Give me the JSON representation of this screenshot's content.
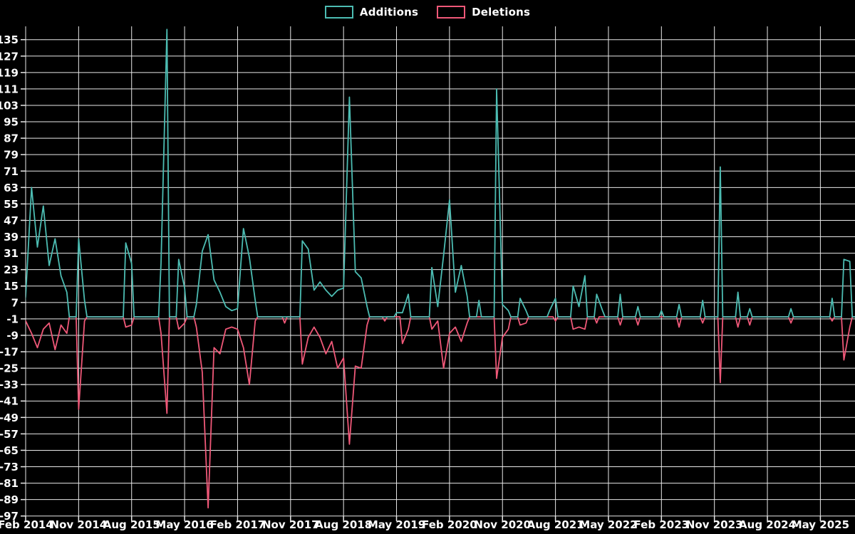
{
  "legend": {
    "items": [
      {
        "label": "Additions",
        "color": "#4cbcb2"
      },
      {
        "label": "Deletions",
        "color": "#ef5878"
      }
    ]
  },
  "colors": {
    "background": "#000000",
    "grid": "#e8e8e8",
    "text": "#ffffff",
    "additions": "#4cbcb2",
    "deletions": "#ef5878"
  },
  "chart_data": {
    "type": "line",
    "title": "",
    "xlabel": "",
    "ylabel": "",
    "legend_position": "top-center",
    "grid": true,
    "x_unit": "months since Feb 2014",
    "months_total": 141,
    "x_tick_interval_months": 9,
    "x_tick_labels": [
      "Feb 2014",
      "Nov 2014",
      "Aug 2015",
      "May 2016",
      "Feb 2017",
      "Nov 2017",
      "Aug 2018",
      "May 2019",
      "Feb 2020",
      "Nov 2020",
      "Aug 2021",
      "May 2022",
      "Feb 2023",
      "Nov 2023",
      "Aug 2024",
      "May 2025"
    ],
    "y_ticks": [
      135,
      127,
      119,
      111,
      103,
      95,
      87,
      79,
      71,
      63,
      55,
      47,
      39,
      31,
      23,
      15,
      7,
      -1,
      -9,
      -17,
      -25,
      -33,
      -41,
      -49,
      -57,
      -65,
      -73,
      -81,
      -89,
      -97
    ],
    "ylim": [
      -97,
      141
    ],
    "baseline_value": 0,
    "series": [
      {
        "name": "Additions",
        "color": "#4cbcb2",
        "points": [
          [
            0,
            10
          ],
          [
            1,
            63
          ],
          [
            2,
            34
          ],
          [
            3,
            54
          ],
          [
            4,
            25
          ],
          [
            5,
            38
          ],
          [
            6,
            20
          ],
          [
            7,
            12
          ],
          [
            9,
            38
          ],
          [
            10,
            8
          ],
          [
            17,
            36
          ],
          [
            18,
            26
          ],
          [
            23,
            26
          ],
          [
            24,
            140
          ],
          [
            26,
            28
          ],
          [
            27,
            14
          ],
          [
            29,
            6
          ],
          [
            30,
            32
          ],
          [
            31,
            40
          ],
          [
            32,
            18
          ],
          [
            33,
            12
          ],
          [
            34,
            5
          ],
          [
            35,
            3
          ],
          [
            36,
            4
          ],
          [
            37,
            43
          ],
          [
            38,
            29
          ],
          [
            39,
            8
          ],
          [
            47,
            37
          ],
          [
            48,
            33
          ],
          [
            49,
            13
          ],
          [
            50,
            17
          ],
          [
            51,
            13
          ],
          [
            52,
            10
          ],
          [
            53,
            13
          ],
          [
            54,
            14
          ],
          [
            55,
            107
          ],
          [
            56,
            22
          ],
          [
            57,
            19
          ],
          [
            58,
            5
          ],
          [
            63,
            2
          ],
          [
            64,
            2
          ],
          [
            65,
            11
          ],
          [
            69,
            24
          ],
          [
            70,
            5
          ],
          [
            71,
            30
          ],
          [
            72,
            57
          ],
          [
            73,
            12
          ],
          [
            74,
            25
          ],
          [
            75,
            10
          ],
          [
            77,
            8
          ],
          [
            80,
            111
          ],
          [
            81,
            6
          ],
          [
            82,
            3
          ],
          [
            84,
            9
          ],
          [
            85,
            3
          ],
          [
            89,
            3
          ],
          [
            90,
            9
          ],
          [
            93,
            15
          ],
          [
            94,
            5
          ],
          [
            95,
            20
          ],
          [
            97,
            11
          ],
          [
            98,
            3
          ],
          [
            101,
            11
          ],
          [
            104,
            5
          ],
          [
            108,
            3
          ],
          [
            111,
            6
          ],
          [
            115,
            8
          ],
          [
            118,
            73
          ],
          [
            121,
            12
          ],
          [
            123,
            4
          ],
          [
            130,
            4
          ],
          [
            137,
            9
          ],
          [
            139,
            28
          ],
          [
            140,
            27
          ]
        ]
      },
      {
        "name": "Deletions",
        "color": "#ef5878",
        "points": [
          [
            0,
            -2
          ],
          [
            1,
            -8
          ],
          [
            2,
            -15
          ],
          [
            3,
            -6
          ],
          [
            4,
            -3
          ],
          [
            5,
            -16
          ],
          [
            6,
            -4
          ],
          [
            7,
            -8
          ],
          [
            9,
            -45
          ],
          [
            10,
            -2
          ],
          [
            17,
            -5
          ],
          [
            18,
            -4
          ],
          [
            23,
            -8
          ],
          [
            24,
            -47
          ],
          [
            26,
            -6
          ],
          [
            27,
            -3
          ],
          [
            29,
            -5
          ],
          [
            30,
            -27
          ],
          [
            31,
            -93
          ],
          [
            32,
            -15
          ],
          [
            33,
            -18
          ],
          [
            34,
            -6
          ],
          [
            35,
            -5
          ],
          [
            36,
            -6
          ],
          [
            37,
            -15
          ],
          [
            38,
            -33
          ],
          [
            39,
            -2
          ],
          [
            44,
            -3
          ],
          [
            47,
            -23
          ],
          [
            48,
            -10
          ],
          [
            49,
            -5
          ],
          [
            50,
            -10
          ],
          [
            51,
            -18
          ],
          [
            52,
            -12
          ],
          [
            53,
            -25
          ],
          [
            54,
            -20
          ],
          [
            55,
            -62
          ],
          [
            56,
            -24
          ],
          [
            57,
            -25
          ],
          [
            58,
            -4
          ],
          [
            61,
            -2
          ],
          [
            64,
            -13
          ],
          [
            65,
            -6
          ],
          [
            69,
            -6
          ],
          [
            70,
            -2
          ],
          [
            71,
            -25
          ],
          [
            72,
            -8
          ],
          [
            73,
            -5
          ],
          [
            74,
            -12
          ],
          [
            75,
            -3
          ],
          [
            80,
            -30
          ],
          [
            81,
            -10
          ],
          [
            82,
            -6
          ],
          [
            84,
            -4
          ],
          [
            85,
            -3
          ],
          [
            90,
            -2
          ],
          [
            93,
            -6
          ],
          [
            94,
            -5
          ],
          [
            95,
            -6
          ],
          [
            97,
            -3
          ],
          [
            101,
            -4
          ],
          [
            104,
            -4
          ],
          [
            111,
            -5
          ],
          [
            115,
            -3
          ],
          [
            118,
            -32
          ],
          [
            121,
            -5
          ],
          [
            123,
            -4
          ],
          [
            130,
            -3
          ],
          [
            137,
            -2
          ],
          [
            139,
            -21
          ],
          [
            140,
            -5
          ]
        ]
      }
    ]
  }
}
